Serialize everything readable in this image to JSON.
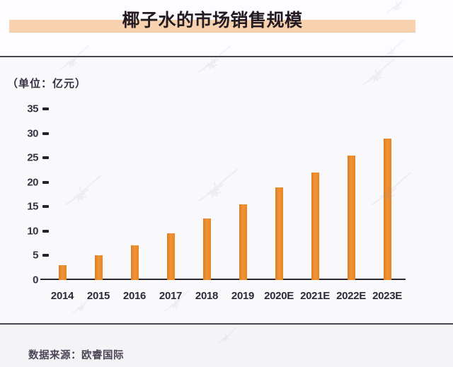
{
  "page": {
    "title": "椰子水的市场销售规模",
    "unit_label": "（单位：亿元）",
    "source": "数据来源：欧睿国际"
  },
  "colors": {
    "bar": "#ec8a2b",
    "title_highlight": "#f8d2ae",
    "rule": "#4a4450"
  },
  "chart_data": {
    "type": "bar",
    "title": "椰子水的市场销售规模",
    "unit": "亿元",
    "categories": [
      "2014",
      "2015",
      "2016",
      "2017",
      "2018",
      "2019",
      "2020E",
      "2021E",
      "2022E",
      "2023E"
    ],
    "values": [
      3,
      5,
      7,
      9.5,
      12.5,
      15.5,
      19,
      22,
      25.5,
      29
    ],
    "yticks": [
      0,
      5,
      10,
      15,
      20,
      25,
      30,
      35
    ],
    "ylim": [
      0,
      35
    ],
    "grid": false,
    "legend": false,
    "bar_color": "#ec8a2b",
    "source": "数据来源：欧睿国际"
  }
}
